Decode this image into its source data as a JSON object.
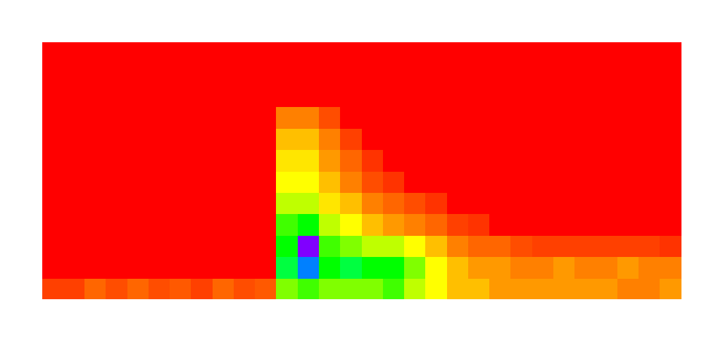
{
  "chart_data": {
    "type": "heatmap",
    "xlim": [
      0,
      30
    ],
    "ylim": [
      0,
      12
    ],
    "tick_labels": false,
    "grid": false,
    "color_range": [
      0,
      1
    ],
    "cells": [
      [
        0.05,
        0.05,
        0.08,
        0.06,
        0.08,
        0.06,
        0.07,
        0.05,
        0.08,
        0.06,
        0.07,
        0.3,
        0.35,
        0.3,
        0.3,
        0.3,
        0.35,
        0.25,
        0.2,
        0.15,
        0.15,
        0.12,
        0.12,
        0.12,
        0.12,
        0.12,
        0.12,
        0.1,
        0.1,
        0.12
      ],
      [
        0,
        0,
        0,
        0,
        0,
        0,
        0,
        0,
        0,
        0,
        0,
        0.45,
        0.7,
        0.4,
        0.45,
        0.4,
        0.4,
        0.3,
        0.2,
        0.15,
        0.12,
        0.12,
        0.1,
        0.1,
        0.12,
        0.1,
        0.1,
        0.12,
        0.1,
        0.1
      ],
      [
        0,
        0,
        0,
        0,
        0,
        0,
        0,
        0,
        0,
        0,
        0,
        0.4,
        0.9,
        0.35,
        0.3,
        0.25,
        0.25,
        0.2,
        0.15,
        0.1,
        0.08,
        0.08,
        0.06,
        0.05,
        0.05,
        0.05,
        0.05,
        0.05,
        0.05,
        0.04
      ],
      [
        0,
        0,
        0,
        0,
        0,
        0,
        0,
        0,
        0,
        0,
        0,
        0.35,
        0.4,
        0.25,
        0.2,
        0.15,
        0.12,
        0.1,
        0.08,
        0.05,
        0.04,
        0,
        0,
        0,
        0,
        0,
        0,
        0,
        0,
        0
      ],
      [
        0,
        0,
        0,
        0,
        0,
        0,
        0,
        0,
        0,
        0,
        0,
        0.25,
        0.25,
        0.18,
        0.15,
        0.1,
        0.08,
        0.06,
        0.04,
        0,
        0,
        0,
        0,
        0,
        0,
        0,
        0,
        0,
        0,
        0
      ],
      [
        0,
        0,
        0,
        0,
        0,
        0,
        0,
        0,
        0,
        0,
        0,
        0.2,
        0.2,
        0.15,
        0.1,
        0.06,
        0.04,
        0,
        0,
        0,
        0,
        0,
        0,
        0,
        0,
        0,
        0,
        0,
        0,
        0
      ],
      [
        0,
        0,
        0,
        0,
        0,
        0,
        0,
        0,
        0,
        0,
        0,
        0.18,
        0.18,
        0.12,
        0.08,
        0.04,
        0,
        0,
        0,
        0,
        0,
        0,
        0,
        0,
        0,
        0,
        0,
        0,
        0,
        0
      ],
      [
        0,
        0,
        0,
        0,
        0,
        0,
        0,
        0,
        0,
        0,
        0,
        0.15,
        0.15,
        0.1,
        0.05,
        0,
        0,
        0,
        0,
        0,
        0,
        0,
        0,
        0,
        0,
        0,
        0,
        0,
        0,
        0
      ],
      [
        0,
        0,
        0,
        0,
        0,
        0,
        0,
        0,
        0,
        0,
        0,
        0.1,
        0.1,
        0.06,
        0,
        0,
        0,
        0,
        0,
        0,
        0,
        0,
        0,
        0,
        0,
        0,
        0,
        0,
        0,
        0
      ],
      [
        0,
        0,
        0,
        0,
        0,
        0,
        0,
        0,
        0,
        0,
        0,
        0,
        0,
        0,
        0,
        0,
        0,
        0,
        0,
        0,
        0,
        0,
        0,
        0,
        0,
        0,
        0,
        0,
        0,
        0
      ],
      [
        0,
        0,
        0,
        0,
        0,
        0,
        0,
        0,
        0,
        0,
        0,
        0,
        0,
        0,
        0,
        0,
        0,
        0,
        0,
        0,
        0,
        0,
        0,
        0,
        0,
        0,
        0,
        0,
        0,
        0
      ],
      [
        0,
        0,
        0,
        0,
        0,
        0,
        0,
        0,
        0,
        0,
        0,
        0,
        0,
        0,
        0,
        0,
        0,
        0,
        0,
        0,
        0,
        0,
        0,
        0,
        0,
        0,
        0,
        0,
        0,
        0
      ]
    ]
  }
}
